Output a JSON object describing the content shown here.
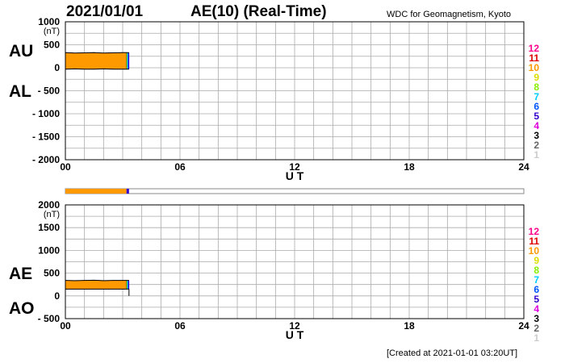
{
  "header": {
    "date": "2021/01/01",
    "title": "AE(10) (Real-Time)",
    "source": "WDC for Geomagnetism, Kyoto"
  },
  "footer": {
    "created": "[Created at 2021-01-01 03:20UT]"
  },
  "colors": {
    "main_fill": "#ff9900",
    "grid": "#aaaaaa",
    "station_colors": {
      "12": "#ff0088",
      "11": "#dd0000",
      "10": "#ff9900",
      "9": "#dddd00",
      "8": "#88ee00",
      "7": "#00ccff",
      "6": "#0055ff",
      "5": "#3300cc",
      "4": "#dd00dd",
      "3": "#000000",
      "2": "#666666",
      "1": "#cccccc"
    }
  },
  "station_legend": [
    "12",
    "11",
    "10",
    "9",
    "8",
    "7",
    "6",
    "5",
    "4",
    "3",
    "2",
    "1"
  ],
  "chart_data": [
    {
      "type": "area",
      "name": "AU/AL panel",
      "left_labels": {
        "upper": "AU",
        "lower": "AL"
      },
      "yunit": "(nT)",
      "ylim": [
        -2000,
        1000
      ],
      "yticks": [
        1000,
        500,
        0,
        -500,
        -1000,
        -1500,
        -2000
      ],
      "ytick_labels": [
        "1000",
        "500",
        "0",
        "- 500",
        "- 1000",
        "- 1500",
        "- 2000"
      ],
      "xlim": [
        0,
        24
      ],
      "xticks": [
        0,
        6,
        12,
        18,
        24
      ],
      "xtick_labels": [
        "00",
        "06",
        "12",
        "18",
        "24"
      ],
      "xlabel": "U T",
      "data_end_hour": 3.33,
      "series": [
        {
          "name": "AU",
          "x": [
            0,
            0.5,
            1,
            1.5,
            2,
            2.5,
            3,
            3.2
          ],
          "values": [
            330,
            320,
            325,
            330,
            320,
            325,
            330,
            330
          ]
        },
        {
          "name": "AL",
          "x": [
            0,
            0.5,
            1,
            1.5,
            2,
            2.5,
            3,
            3.2
          ],
          "values": [
            -30,
            -25,
            -30,
            -30,
            -25,
            -30,
            -30,
            -30
          ]
        }
      ]
    },
    {
      "type": "area",
      "name": "AE/AO panel",
      "left_labels": {
        "upper": "AE",
        "lower": "AO"
      },
      "yunit": "(nT)",
      "ylim": [
        -500,
        2000
      ],
      "yticks": [
        2000,
        1500,
        1000,
        500,
        0,
        -500
      ],
      "ytick_labels": [
        "2000",
        "1500",
        "1000",
        "500",
        "0",
        "- 500"
      ],
      "xlim": [
        0,
        24
      ],
      "xticks": [
        0,
        6,
        12,
        18,
        24
      ],
      "xtick_labels": [
        "00",
        "06",
        "12",
        "18",
        "24"
      ],
      "xlabel": "U T",
      "data_end_hour": 3.33,
      "series": [
        {
          "name": "AE",
          "x": [
            0,
            0.5,
            1,
            1.5,
            2,
            2.5,
            3,
            3.2
          ],
          "values": [
            340,
            335,
            340,
            345,
            335,
            340,
            340,
            340
          ]
        },
        {
          "name": "AO",
          "x": [
            0,
            0.5,
            1,
            1.5,
            2,
            2.5,
            3,
            3.2
          ],
          "values": [
            150,
            150,
            150,
            150,
            150,
            150,
            150,
            150
          ]
        }
      ]
    }
  ]
}
